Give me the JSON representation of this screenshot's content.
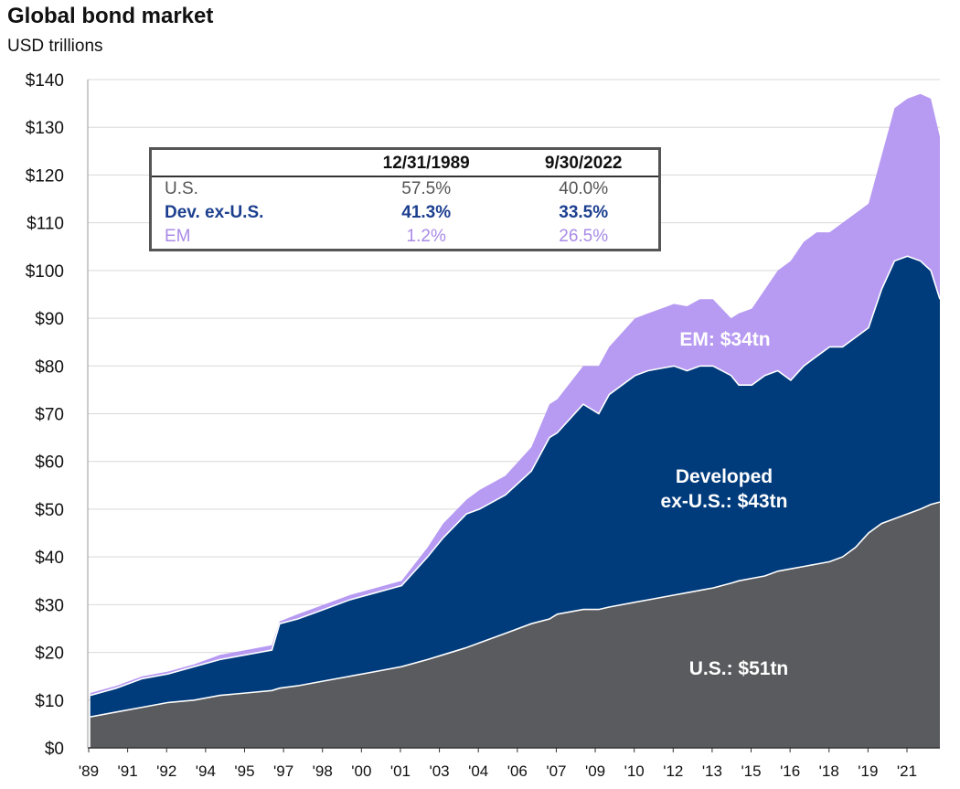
{
  "title": "Global bond market",
  "subtitle": "USD trillions",
  "colors": {
    "us": "#5a5b5e",
    "dev": "#003b7c",
    "em": "#b79af2",
    "grid": "#d9d9d9",
    "boundary": "#ffffff"
  },
  "table": {
    "headers": [
      "",
      "12/31/1989",
      "9/30/2022"
    ],
    "rows": [
      {
        "label": "U.S.",
        "v1989": "57.5%",
        "v2022": "40.0%"
      },
      {
        "label": "Dev. ex-U.S.",
        "v1989": "41.3%",
        "v2022": "33.5%"
      },
      {
        "label": "EM",
        "v1989": "1.2%",
        "v2022": "26.5%"
      }
    ]
  },
  "chart_data": {
    "type": "area",
    "stacked": true,
    "title": "Global bond market",
    "ylabel": "USD trillions",
    "ylim": [
      0,
      140
    ],
    "xlim": [
      1989.9,
      2022.75
    ],
    "y_ticks": [
      {
        "value": 0,
        "label": "$0"
      },
      {
        "value": 10,
        "label": "$10"
      },
      {
        "value": 20,
        "label": "$20"
      },
      {
        "value": 30,
        "label": "$30"
      },
      {
        "value": 40,
        "label": "$40"
      },
      {
        "value": 50,
        "label": "$50"
      },
      {
        "value": 60,
        "label": "$60"
      },
      {
        "value": 70,
        "label": "$70"
      },
      {
        "value": 80,
        "label": "$80"
      },
      {
        "value": 90,
        "label": "$90"
      },
      {
        "value": 100,
        "label": "$100"
      },
      {
        "value": 110,
        "label": "$110"
      },
      {
        "value": 120,
        "label": "$120"
      },
      {
        "value": 130,
        "label": "$130"
      },
      {
        "value": 140,
        "label": "$140"
      }
    ],
    "x_ticks": [
      "'89",
      "'91",
      "'92",
      "'94",
      "'95",
      "'97",
      "'98",
      "'00",
      "'01",
      "'03",
      "'04",
      "'06",
      "'07",
      "'09",
      "'10",
      "'12",
      "'13",
      "'15",
      "'16",
      "'18",
      "'19",
      "'21"
    ],
    "grid": true,
    "x": [
      1990.0,
      1991.0,
      1992.0,
      1993.0,
      1994.0,
      1995.0,
      1996.0,
      1997.0,
      1997.3,
      1998.0,
      1999.0,
      2000.0,
      2001.0,
      2002.0,
      2003.0,
      2003.6,
      2004.5,
      2005.0,
      2006.0,
      2007.0,
      2007.7,
      2008.0,
      2009.0,
      2009.6,
      2010.0,
      2011.0,
      2011.5,
      2012.0,
      2012.5,
      2013.0,
      2013.5,
      2014.0,
      2014.7,
      2015.0,
      2015.5,
      2016.0,
      2016.5,
      2017.0,
      2017.5,
      2018.0,
      2018.5,
      2019.0,
      2019.5,
      2020.0,
      2020.5,
      2021.0,
      2021.5,
      2022.0,
      2022.4,
      2022.75
    ],
    "series": [
      {
        "name": "U.S.",
        "label": "U.S.: $51tn",
        "values": [
          6.5,
          7.5,
          8.5,
          9.5,
          10.0,
          11.0,
          11.5,
          12.0,
          12.5,
          13.0,
          14.0,
          15.0,
          16.0,
          17.0,
          18.5,
          19.5,
          21.0,
          22.0,
          24.0,
          26.0,
          27.0,
          28.0,
          29.0,
          29.0,
          29.5,
          30.5,
          31.0,
          31.5,
          32.0,
          32.5,
          33.0,
          33.5,
          34.5,
          35.0,
          35.5,
          36.0,
          37.0,
          37.5,
          38.0,
          38.5,
          39.0,
          40.0,
          42.0,
          45.0,
          47.0,
          48.0,
          49.0,
          50.0,
          51.0,
          51.5
        ]
      },
      {
        "name": "Developed ex-U.S.",
        "label": "Developed\nex-U.S.: $43tn",
        "values": [
          11.0,
          12.5,
          14.5,
          15.5,
          17.0,
          18.5,
          19.5,
          20.5,
          26.0,
          27.0,
          29.0,
          31.0,
          32.5,
          34.0,
          40.0,
          44.0,
          49.0,
          50.0,
          53.0,
          58.0,
          65.0,
          66.0,
          72.0,
          70.0,
          74.0,
          78.0,
          79.0,
          79.5,
          80.0,
          79.0,
          80.0,
          80.0,
          78.0,
          76.0,
          76.0,
          78.0,
          79.0,
          77.0,
          80.0,
          82.0,
          84.0,
          84.0,
          86.0,
          88.0,
          96.0,
          102.0,
          103.0,
          102.0,
          100.0,
          94.0
        ]
      },
      {
        "name": "EM",
        "label": "EM: $34tn",
        "values": [
          11.5,
          13.0,
          15.0,
          16.0,
          17.5,
          19.5,
          20.5,
          21.5,
          26.5,
          28.0,
          30.0,
          32.0,
          33.5,
          35.0,
          42.0,
          47.0,
          52.0,
          54.0,
          57.0,
          63.0,
          72.0,
          73.0,
          80.0,
          80.0,
          84.0,
          90.0,
          91.0,
          92.0,
          93.0,
          92.5,
          94.0,
          94.0,
          90.0,
          91.0,
          92.0,
          96.0,
          100.0,
          102.0,
          106.0,
          108.0,
          108.0,
          110.0,
          112.0,
          114.0,
          124.0,
          134.0,
          136.0,
          137.0,
          136.0,
          128.0
        ]
      }
    ]
  }
}
